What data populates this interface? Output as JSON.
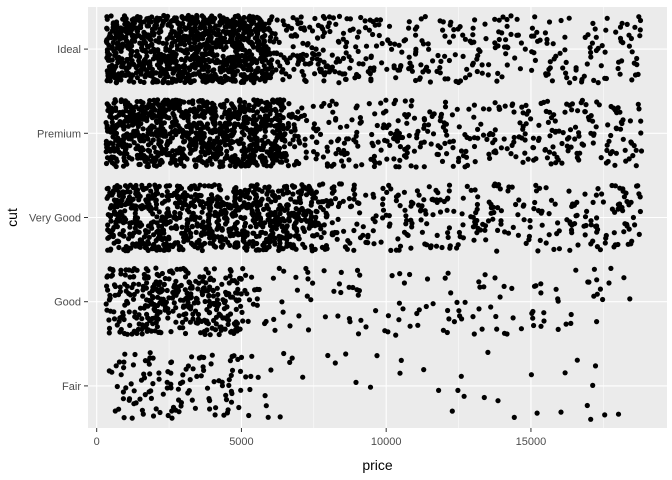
{
  "chart_data": {
    "type": "scatter",
    "style": "jitter-strip",
    "xlabel": "price",
    "ylabel": "cut",
    "xlim": [
      -300,
      19700
    ],
    "x_ticks": [
      0,
      5000,
      10000,
      15000
    ],
    "x_tick_labels": [
      "0",
      "5000",
      "10000",
      "15000"
    ],
    "categories": [
      "Fair",
      "Good",
      "Very Good",
      "Premium",
      "Ideal"
    ],
    "grid": true,
    "legend": "none",
    "colors": {
      "panel": "#ebebeb",
      "grid": "#ffffff",
      "point": "#000000"
    },
    "series": [
      {
        "category": "Fair",
        "price_min": 337,
        "price_max": 18574,
        "dense_upto": 5000,
        "points": 1610
      },
      {
        "category": "Good",
        "price_min": 327,
        "price_max": 18788,
        "dense_upto": 5000,
        "points": 4906
      },
      {
        "category": "Very Good",
        "price_min": 336,
        "price_max": 18818,
        "dense_upto": 7500,
        "points": 12082
      },
      {
        "category": "Premium",
        "price_min": 326,
        "price_max": 18823,
        "dense_upto": 6500,
        "points": 13791
      },
      {
        "category": "Ideal",
        "price_min": 326,
        "price_max": 18806,
        "dense_upto": 6000,
        "points": 21551
      }
    ]
  }
}
